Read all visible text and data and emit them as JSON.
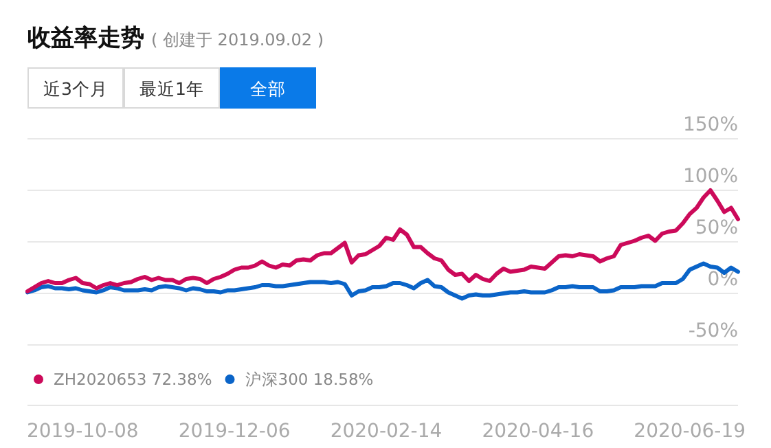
{
  "chart_data": {
    "type": "line",
    "title": "收益率走势",
    "subtitle": "( 创建于 2019.09.02 )",
    "annotations": [
      "近3个月",
      "最近1年",
      "全部"
    ],
    "categories": [
      null,
      null,
      null,
      null,
      null,
      null,
      null,
      null,
      "2019-10-08",
      null,
      null,
      null,
      null,
      null,
      null,
      null,
      null,
      null,
      null,
      null,
      null,
      null,
      null,
      null,
      null,
      null,
      null,
      null,
      null,
      null,
      "2019-12-06",
      null,
      null,
      null,
      null,
      null,
      null,
      null,
      null,
      null,
      null,
      null,
      null,
      null,
      null,
      null,
      null,
      null,
      null,
      null,
      null,
      null,
      "2020-02-14",
      null,
      null,
      null,
      null,
      null,
      null,
      null,
      null,
      null,
      null,
      null,
      null,
      null,
      null,
      null,
      null,
      null,
      null,
      null,
      null,
      null,
      "2020-04-16",
      null,
      null,
      null,
      null,
      null,
      null,
      null,
      null,
      null,
      null,
      null,
      null,
      null,
      null,
      null,
      null,
      null,
      null,
      null,
      null,
      null,
      "2020-06-19",
      null,
      null,
      null,
      null,
      null,
      null,
      null
    ],
    "series": [
      {
        "name": "ZH2020653 72.38%",
        "color": "#cc0a5a",
        "values": [
          2,
          6,
          10,
          12,
          10,
          10,
          13,
          15,
          10,
          9,
          5,
          8,
          10,
          8,
          10,
          11,
          14,
          16,
          13,
          15,
          13,
          13,
          10,
          14,
          15,
          14,
          10,
          14,
          16,
          19,
          23,
          25,
          25,
          27,
          31,
          27,
          25,
          28,
          27,
          32,
          33,
          32,
          37,
          39,
          39,
          44,
          49,
          30,
          37,
          38,
          42,
          46,
          54,
          52,
          62,
          57,
          45,
          45,
          39,
          34,
          32,
          23,
          18,
          19,
          12,
          18,
          14,
          12,
          19,
          24,
          21,
          22,
          23,
          26,
          25,
          24,
          30,
          36,
          37,
          36,
          38,
          37,
          36,
          31,
          34,
          36,
          47,
          49,
          51,
          54,
          56,
          51,
          58,
          60,
          61,
          68,
          77,
          83,
          93,
          100,
          90,
          79,
          83,
          72
        ]
      },
      {
        "name": "沪深300 18.58%",
        "color": "#0a64c8",
        "values": [
          1,
          3,
          6,
          7,
          5,
          5,
          4,
          5,
          3,
          2,
          1,
          3,
          6,
          5,
          3,
          3,
          3,
          4,
          3,
          6,
          7,
          6,
          5,
          3,
          5,
          4,
          2,
          2,
          1,
          3,
          3,
          4,
          5,
          6,
          8,
          8,
          7,
          7,
          8,
          9,
          10,
          11,
          11,
          11,
          10,
          11,
          9,
          -2,
          2,
          3,
          6,
          6,
          7,
          10,
          10,
          8,
          5,
          10,
          13,
          7,
          6,
          1,
          -2,
          -5,
          -2,
          -1,
          -2,
          -2,
          -1,
          0,
          1,
          1,
          2,
          1,
          1,
          1,
          3,
          6,
          6,
          7,
          6,
          6,
          6,
          2,
          2,
          3,
          6,
          6,
          6,
          7,
          7,
          7,
          10,
          10,
          10,
          14,
          23,
          26,
          29,
          26,
          25,
          20,
          25,
          21
        ]
      }
    ],
    "ylim": [
      -50,
      150
    ],
    "yticks": [
      {
        "value": -50,
        "label": "-50%"
      },
      {
        "value": 0,
        "label": "0%"
      },
      {
        "value": 50,
        "label": "50%"
      },
      {
        "value": 100,
        "label": "100%"
      },
      {
        "value": 150,
        "label": "150%"
      }
    ],
    "grid": "y",
    "legend": "bottom left",
    "marker": "none",
    "line_style": "solid"
  }
}
